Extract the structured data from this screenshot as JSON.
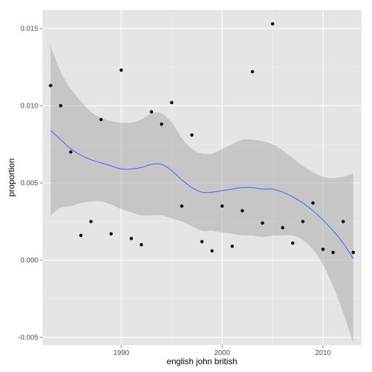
{
  "chart_data": {
    "type": "scatter",
    "xlabel": "english john british",
    "ylabel": "proportion",
    "xlim": [
      1982.2,
      2013.8
    ],
    "ylim": [
      -0.0055,
      0.0162
    ],
    "x_ticks": [
      1990,
      2000,
      2010
    ],
    "x_tick_labels": [
      "1990",
      "2000",
      "2010"
    ],
    "y_ticks": [
      -0.005,
      0.0,
      0.005,
      0.01,
      0.015
    ],
    "y_tick_labels": [
      "-0.005",
      "0.000",
      "0.005",
      "0.010",
      "0.015"
    ],
    "grid": true,
    "points": [
      {
        "x": 1983,
        "y": 0.0113
      },
      {
        "x": 1984,
        "y": 0.01
      },
      {
        "x": 1985,
        "y": 0.007
      },
      {
        "x": 1986,
        "y": 0.0016
      },
      {
        "x": 1987,
        "y": 0.0025
      },
      {
        "x": 1988,
        "y": 0.0091
      },
      {
        "x": 1989,
        "y": 0.0017
      },
      {
        "x": 1990,
        "y": 0.0123
      },
      {
        "x": 1991,
        "y": 0.0014
      },
      {
        "x": 1992,
        "y": 0.001
      },
      {
        "x": 1993,
        "y": 0.0096
      },
      {
        "x": 1994,
        "y": 0.0088
      },
      {
        "x": 1995,
        "y": 0.0102
      },
      {
        "x": 1996,
        "y": 0.0035
      },
      {
        "x": 1997,
        "y": 0.0081
      },
      {
        "x": 1998,
        "y": 0.0012
      },
      {
        "x": 1999,
        "y": 0.0006
      },
      {
        "x": 2000,
        "y": 0.0035
      },
      {
        "x": 2001,
        "y": 0.0009
      },
      {
        "x": 2002,
        "y": 0.0032
      },
      {
        "x": 2003,
        "y": 0.0122
      },
      {
        "x": 2004,
        "y": 0.0024
      },
      {
        "x": 2005,
        "y": 0.0153
      },
      {
        "x": 2006,
        "y": 0.0021
      },
      {
        "x": 2007,
        "y": 0.0011
      },
      {
        "x": 2008,
        "y": 0.0025
      },
      {
        "x": 2009,
        "y": 0.0037
      },
      {
        "x": 2010,
        "y": 0.0007
      },
      {
        "x": 2011,
        "y": 0.0005
      },
      {
        "x": 2012,
        "y": 0.0025
      },
      {
        "x": 2013,
        "y": 0.0005
      }
    ],
    "smooth": {
      "x": [
        1983,
        1984,
        1985,
        1986,
        1987,
        1988,
        1989,
        1990,
        1991,
        1992,
        1993,
        1994,
        1995,
        1996,
        1997,
        1998,
        1999,
        2000,
        2001,
        2002,
        2003,
        2004,
        2005,
        2006,
        2007,
        2008,
        2009,
        2010,
        2011,
        2012,
        2013
      ],
      "y": [
        0.0084,
        0.0078,
        0.0072,
        0.0068,
        0.0065,
        0.0063,
        0.0061,
        0.0059,
        0.0059,
        0.006,
        0.0062,
        0.0062,
        0.0058,
        0.0052,
        0.0047,
        0.0044,
        0.0044,
        0.0045,
        0.0046,
        0.0047,
        0.0047,
        0.0046,
        0.0046,
        0.0044,
        0.0041,
        0.0037,
        0.0032,
        0.0026,
        0.0019,
        0.0011,
        0.0001
      ],
      "upper": [
        0.0139,
        0.0122,
        0.0111,
        0.0103,
        0.0096,
        0.0092,
        0.009,
        0.0089,
        0.0089,
        0.0091,
        0.0095,
        0.0095,
        0.0089,
        0.0079,
        0.0072,
        0.0069,
        0.0069,
        0.0072,
        0.0075,
        0.0078,
        0.0078,
        0.0077,
        0.0075,
        0.0071,
        0.0066,
        0.0061,
        0.0057,
        0.0054,
        0.0053,
        0.0054,
        0.0056
      ],
      "lower": [
        0.0029,
        0.0034,
        0.0035,
        0.0037,
        0.0038,
        0.0038,
        0.0036,
        0.0033,
        0.0031,
        0.0029,
        0.0029,
        0.0029,
        0.0027,
        0.0025,
        0.0022,
        0.0019,
        0.0019,
        0.0018,
        0.0017,
        0.0016,
        0.0016,
        0.0015,
        0.0016,
        0.0016,
        0.0016,
        0.0013,
        0.0007,
        -0.0003,
        -0.0017,
        -0.0034,
        -0.0054
      ]
    },
    "colors": {
      "panel_background": "#e5e5e5",
      "grid_major": "#ffffff",
      "grid_minor": "#f2f2f2",
      "point": "#000000",
      "smooth_line": "#3366ff",
      "confidence_band": "#999999"
    }
  }
}
